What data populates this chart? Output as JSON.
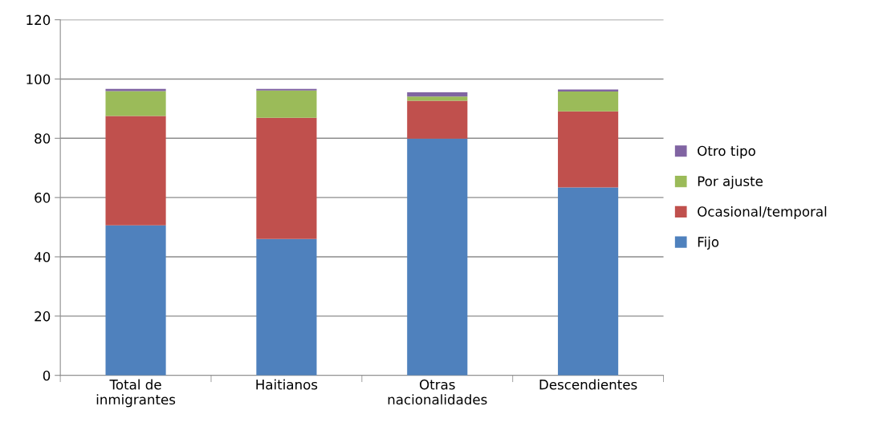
{
  "chart_data": {
    "type": "bar",
    "stacked": true,
    "categories": [
      "Total de\ninmigrantes",
      "Haitianos",
      "Otras\nnacionalidades",
      "Descendientes"
    ],
    "series": [
      {
        "name": "Fijo",
        "color": "#4f81bd",
        "values": [
          50.6,
          46.0,
          79.9,
          63.4
        ]
      },
      {
        "name": "Ocasional/temporal",
        "color": "#c0504d",
        "values": [
          36.9,
          40.9,
          12.8,
          25.7
        ]
      },
      {
        "name": "Por ajuste",
        "color": "#9bbb59",
        "values": [
          8.4,
          9.2,
          1.4,
          6.7
        ]
      },
      {
        "name": "Otro tipo",
        "color": "#8064a2",
        "values": [
          0.8,
          0.6,
          1.4,
          0.7
        ]
      }
    ],
    "ylim": [
      0,
      120
    ],
    "yticks": [
      0,
      20,
      40,
      60,
      80,
      100,
      120
    ],
    "grid": "y",
    "legend": "right"
  }
}
